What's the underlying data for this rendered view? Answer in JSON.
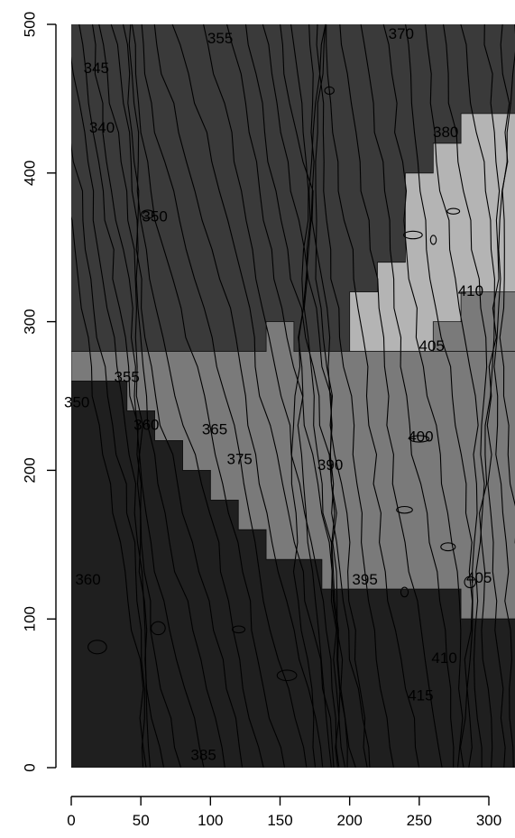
{
  "chart_data": {
    "type": "heatmap",
    "title": "",
    "xlabel": "",
    "ylabel": "",
    "xlim": [
      0,
      300
    ],
    "ylim": [
      0,
      500
    ],
    "x_ticks": [
      0,
      50,
      100,
      150,
      200,
      250,
      300
    ],
    "y_ticks": [
      0,
      100,
      200,
      300,
      400,
      500
    ],
    "zones": [
      {
        "fill": "#3a3a3a",
        "polygon": [
          [
            0,
            500
          ],
          [
            300,
            500
          ],
          [
            300,
            0
          ],
          [
            0,
            0
          ]
        ]
      },
      {
        "fill": "#b4b4b4",
        "polygon": [
          [
            200,
            280
          ],
          [
            200,
            320
          ],
          [
            220,
            320
          ],
          [
            220,
            340
          ],
          [
            240,
            340
          ],
          [
            240,
            400
          ],
          [
            260,
            400
          ],
          [
            260,
            420
          ],
          [
            280,
            420
          ],
          [
            280,
            440
          ],
          [
            300,
            440
          ],
          [
            300,
            280
          ]
        ]
      },
      {
        "fill": "#7a7a7a",
        "polygon": [
          [
            0,
            280
          ],
          [
            40,
            280
          ],
          [
            140,
            280
          ],
          [
            140,
            300
          ],
          [
            160,
            300
          ],
          [
            160,
            280
          ],
          [
            300,
            280
          ],
          [
            300,
            320
          ],
          [
            280,
            320
          ],
          [
            280,
            300
          ],
          [
            260,
            300
          ],
          [
            260,
            280
          ],
          [
            300,
            280
          ],
          [
            300,
            100
          ],
          [
            280,
            100
          ],
          [
            280,
            120
          ],
          [
            180,
            120
          ],
          [
            180,
            140
          ],
          [
            140,
            140
          ],
          [
            140,
            160
          ],
          [
            120,
            160
          ],
          [
            120,
            180
          ],
          [
            100,
            180
          ],
          [
            100,
            200
          ],
          [
            80,
            200
          ],
          [
            80,
            220
          ],
          [
            60,
            220
          ],
          [
            60,
            240
          ],
          [
            40,
            240
          ],
          [
            40,
            260
          ],
          [
            0,
            260
          ]
        ]
      },
      {
        "fill": "#1f1f1f",
        "polygon": [
          [
            0,
            0
          ],
          [
            0,
            260
          ],
          [
            40,
            260
          ],
          [
            40,
            240
          ],
          [
            60,
            240
          ],
          [
            60,
            220
          ],
          [
            80,
            220
          ],
          [
            80,
            200
          ],
          [
            100,
            200
          ],
          [
            100,
            180
          ],
          [
            120,
            180
          ],
          [
            120,
            160
          ],
          [
            140,
            160
          ],
          [
            140,
            140
          ],
          [
            180,
            140
          ],
          [
            180,
            120
          ],
          [
            280,
            120
          ],
          [
            280,
            100
          ],
          [
            300,
            100
          ],
          [
            300,
            0
          ]
        ]
      }
    ],
    "contour_labels": [
      {
        "text": "355",
        "x": 107,
        "y": 490
      },
      {
        "text": "370",
        "x": 237,
        "y": 493
      },
      {
        "text": "345",
        "x": 18,
        "y": 470
      },
      {
        "text": "340",
        "x": 22,
        "y": 430
      },
      {
        "text": "380",
        "x": 269,
        "y": 427
      },
      {
        "text": "350",
        "x": 60,
        "y": 370
      },
      {
        "text": "410",
        "x": 287,
        "y": 320
      },
      {
        "text": "405",
        "x": 259,
        "y": 283
      },
      {
        "text": "355",
        "x": 40,
        "y": 262
      },
      {
        "text": "350",
        "x": 4,
        "y": 245
      },
      {
        "text": "360",
        "x": 54,
        "y": 230
      },
      {
        "text": "365",
        "x": 103,
        "y": 227
      },
      {
        "text": "400",
        "x": 251,
        "y": 222
      },
      {
        "text": "375",
        "x": 121,
        "y": 207
      },
      {
        "text": "390",
        "x": 186,
        "y": 203
      },
      {
        "text": "395",
        "x": 211,
        "y": 126
      },
      {
        "text": "405",
        "x": 293,
        "y": 127
      },
      {
        "text": "360",
        "x": 12,
        "y": 126
      },
      {
        "text": "410",
        "x": 268,
        "y": 73
      },
      {
        "text": "415",
        "x": 251,
        "y": 48
      },
      {
        "text": "385",
        "x": 95,
        "y": 8
      }
    ],
    "grid": false,
    "legend": "none"
  }
}
